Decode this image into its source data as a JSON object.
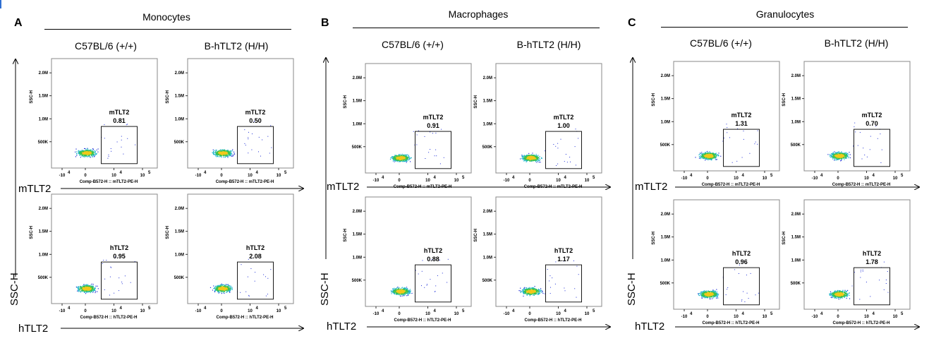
{
  "panels": [
    {
      "letter": "A",
      "cell_type": "Monocytes",
      "col_headers": [
        "C57BL/6 (+/+)",
        "B-hTLT2 (H/H)"
      ],
      "row_labels": [
        "mTLT2",
        "hTLT2"
      ],
      "y_axis_label": "SSC-H"
    },
    {
      "letter": "B",
      "cell_type": "Macrophages",
      "col_headers": [
        "C57BL/6 (+/+)",
        "B-hTLT2 (H/H)"
      ],
      "row_labels": [
        "mTLT2",
        "hTLT2"
      ],
      "y_axis_label": "SSC-H"
    },
    {
      "letter": "C",
      "cell_type": "Granulocytes",
      "col_headers": [
        "C57BL/6 (+/+)",
        "B-hTLT2 (H/H)"
      ],
      "row_labels": [
        "mTLT2",
        "hTLT2"
      ],
      "y_axis_label": "SSC-H"
    }
  ],
  "plot_text": {
    "ylabel": "SSC-H",
    "xlabel_m": "Comp-B572-H :: mTLT2-PE-H",
    "xlabel_h": "Comp-B572-H :: hTLT2-PE-H",
    "yticks": [
      "2.0M",
      "1.5M",
      "1.0M",
      "500K"
    ],
    "xtick_neg": "-10",
    "xtick_zero": "0",
    "xtick_ten": "10",
    "xtick_exps": [
      "4",
      "4",
      "5"
    ]
  },
  "chart_data": {
    "type": "scatter",
    "description_units": "flow cytometry dot plots, SSC-H vs TLT2-PE-H, gate percentages",
    "x_axis": {
      "label_mTLT2": "Comp-B572-H :: mTLT2-PE-H",
      "label_hTLT2": "Comp-B572-H :: hTLT2-PE-H",
      "ticks": [
        "-10^4",
        "0",
        "10^4",
        "10^5"
      ],
      "scale": "biexponential"
    },
    "y_axis": {
      "label": "SSC-H",
      "ticks": [
        "500K",
        "1.0M",
        "1.5M",
        "2.0M"
      ]
    },
    "plots": [
      {
        "cell_type": "Monocytes",
        "strain": "C57BL/6 (+/+)",
        "marker": "mTLT2",
        "gate_label": "mTLT2",
        "gate_value": "0.81"
      },
      {
        "cell_type": "Monocytes",
        "strain": "B-hTLT2 (H/H)",
        "marker": "mTLT2",
        "gate_label": "mTLT2",
        "gate_value": "0.50"
      },
      {
        "cell_type": "Monocytes",
        "strain": "C57BL/6 (+/+)",
        "marker": "hTLT2",
        "gate_label": "hTLT2",
        "gate_value": "0.95"
      },
      {
        "cell_type": "Monocytes",
        "strain": "B-hTLT2 (H/H)",
        "marker": "hTLT2",
        "gate_label": "hTLT2",
        "gate_value": "2.08"
      },
      {
        "cell_type": "Macrophages",
        "strain": "C57BL/6 (+/+)",
        "marker": "mTLT2",
        "gate_label": "mTLT2",
        "gate_value": "0.91"
      },
      {
        "cell_type": "Macrophages",
        "strain": "B-hTLT2 (H/H)",
        "marker": "mTLT2",
        "gate_label": "mTLT2",
        "gate_value": "1.00"
      },
      {
        "cell_type": "Macrophages",
        "strain": "C57BL/6 (+/+)",
        "marker": "hTLT2",
        "gate_label": "hTLT2",
        "gate_value": "0.88"
      },
      {
        "cell_type": "Macrophages",
        "strain": "B-hTLT2 (H/H)",
        "marker": "hTLT2",
        "gate_label": "hTLT2",
        "gate_value": "1.17"
      },
      {
        "cell_type": "Granulocytes",
        "strain": "C57BL/6 (+/+)",
        "marker": "mTLT2",
        "gate_label": "mTLT2",
        "gate_value": "1.31"
      },
      {
        "cell_type": "Granulocytes",
        "strain": "B-hTLT2 (H/H)",
        "marker": "mTLT2",
        "gate_label": "mTLT2",
        "gate_value": "0.70"
      },
      {
        "cell_type": "Granulocytes",
        "strain": "C57BL/6 (+/+)",
        "marker": "hTLT2",
        "gate_label": "hTLT2",
        "gate_value": "0.96"
      },
      {
        "cell_type": "Granulocytes",
        "strain": "B-hTLT2 (H/H)",
        "marker": "hTLT2",
        "gate_label": "hTLT2",
        "gate_value": "1.78"
      }
    ]
  },
  "colors": {
    "dots_outer": "#1f2fd6",
    "dots_mid": "#19b3c9",
    "dots_inner": "#3ac24a",
    "dots_core": "#f2c81a",
    "axis": "#000000"
  }
}
